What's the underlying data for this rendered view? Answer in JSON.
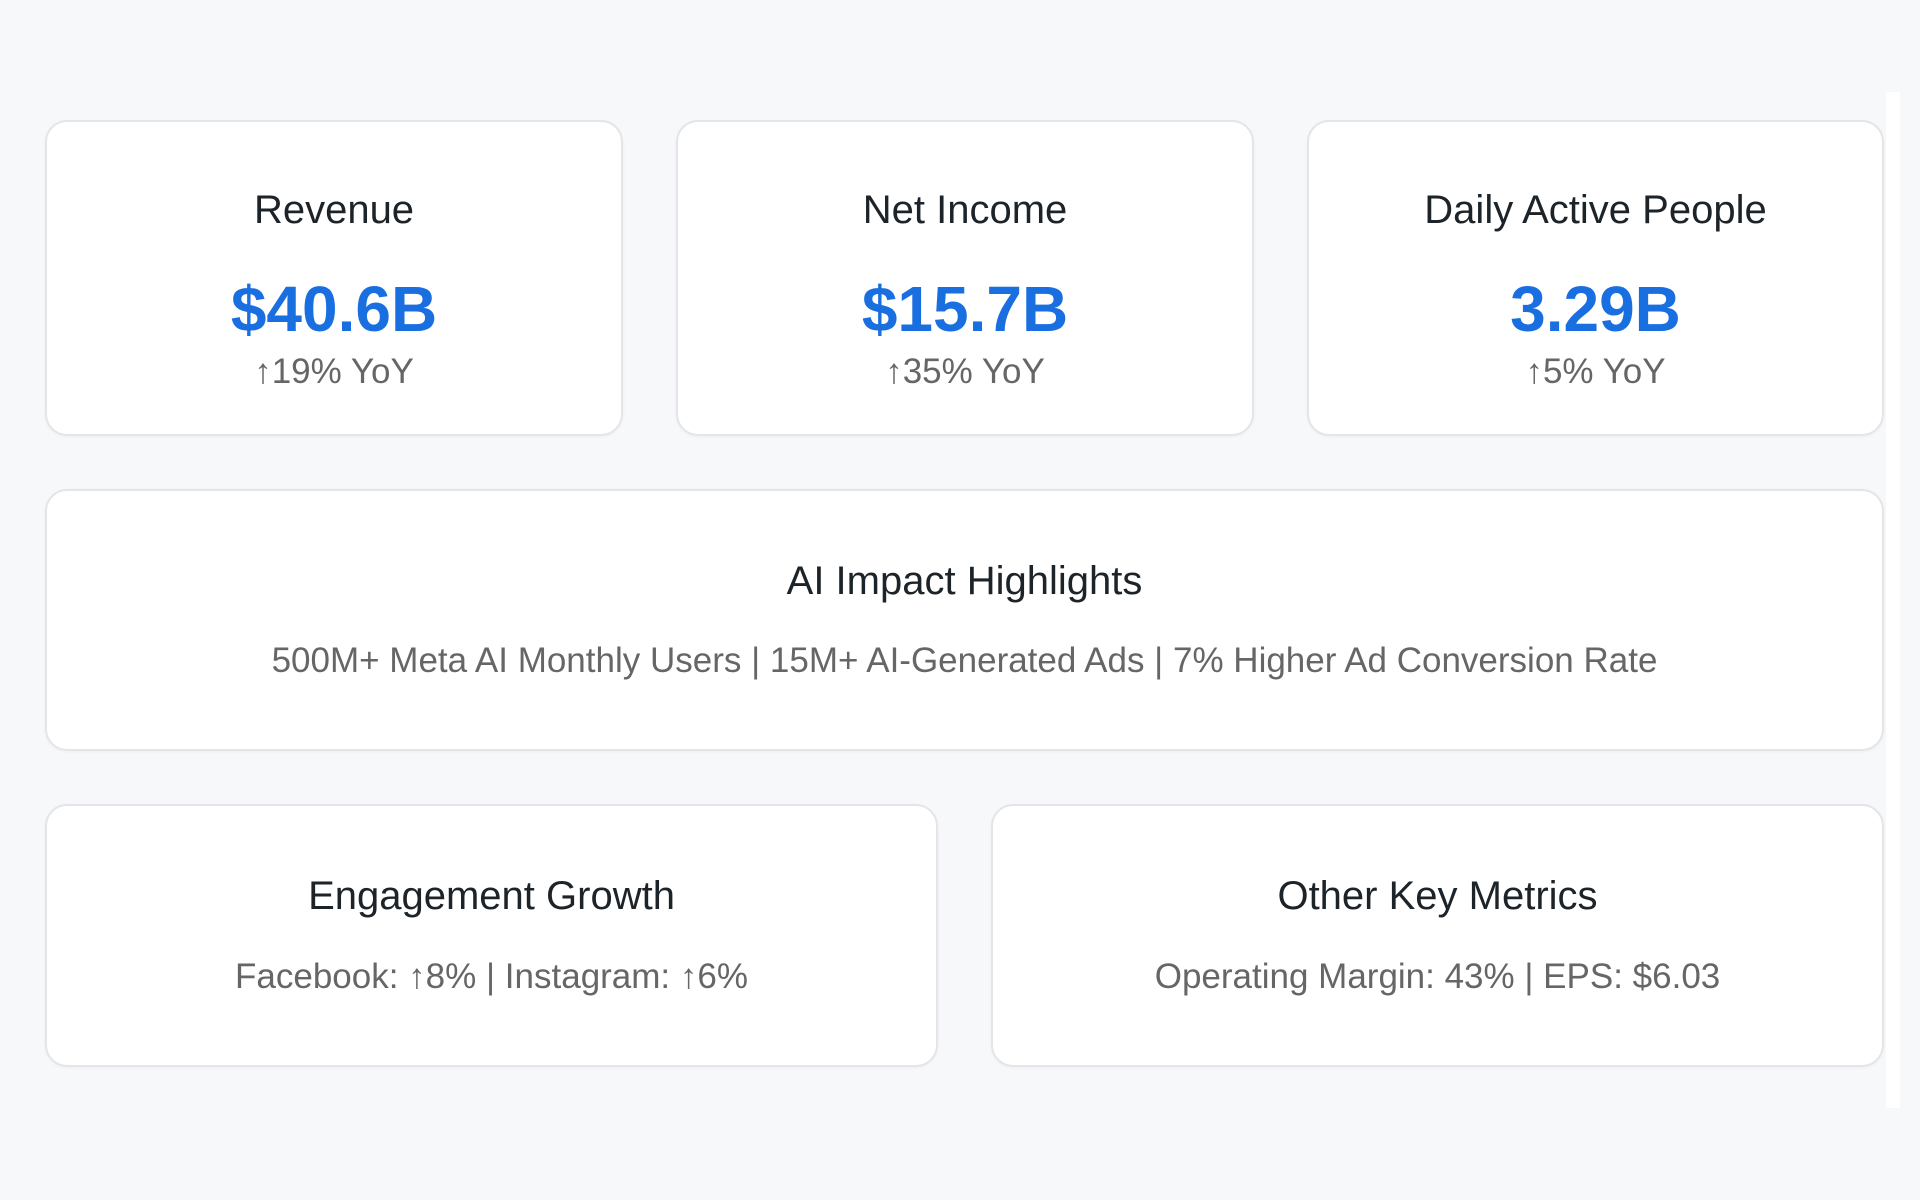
{
  "metrics": [
    {
      "title": "Revenue",
      "value": "$40.6B",
      "change": "↑19% YoY"
    },
    {
      "title": "Net Income",
      "value": "$15.7B",
      "change": "↑35% YoY"
    },
    {
      "title": "Daily Active People",
      "value": "3.29B",
      "change": "↑5% YoY"
    }
  ],
  "ai": {
    "title": "AI Impact Highlights",
    "text": "500M+ Meta AI Monthly Users | 15M+ AI-Generated Ads | 7% Higher Ad Conversion Rate"
  },
  "engagement": {
    "title": "Engagement Growth",
    "text": "Facebook: ↑8% | Instagram: ↑6%"
  },
  "other": {
    "title": "Other Key Metrics",
    "text": "Operating Margin: 43% | EPS: $6.03"
  },
  "colors": {
    "accent": "#1a6fe0",
    "background": "#f7f8fa"
  }
}
